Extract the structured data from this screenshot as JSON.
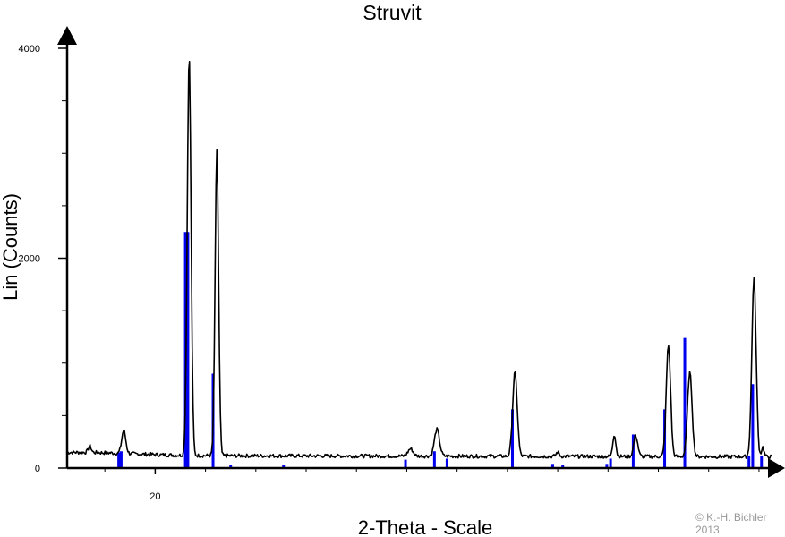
{
  "chart_data": {
    "type": "line",
    "title": "Struvit",
    "xlabel": "2-Theta - Scale",
    "ylabel": "Lin (Counts)",
    "xlim": [
      16.5,
      44.5
    ],
    "ylim": [
      0,
      4000
    ],
    "x_ticks": [
      {
        "value": 20,
        "label": "20"
      }
    ],
    "y_ticks": [
      {
        "value": 0,
        "label": "0"
      },
      {
        "value": 2000,
        "label": "2000"
      },
      {
        "value": 4000,
        "label": "4000"
      }
    ],
    "baseline": 120,
    "peaks": [
      {
        "x": 17.4,
        "y": 60,
        "w": 0.06
      },
      {
        "x": 18.75,
        "y": 220,
        "w": 0.08
      },
      {
        "x": 21.35,
        "y": 3820,
        "w": 0.075
      },
      {
        "x": 22.45,
        "y": 2900,
        "w": 0.07
      },
      {
        "x": 30.15,
        "y": 70,
        "w": 0.1
      },
      {
        "x": 31.2,
        "y": 255,
        "w": 0.1
      },
      {
        "x": 34.3,
        "y": 800,
        "w": 0.09
      },
      {
        "x": 36.0,
        "y": 40,
        "w": 0.06
      },
      {
        "x": 38.25,
        "y": 210,
        "w": 0.06
      },
      {
        "x": 39.1,
        "y": 200,
        "w": 0.08
      },
      {
        "x": 40.4,
        "y": 1060,
        "w": 0.085
      },
      {
        "x": 41.25,
        "y": 800,
        "w": 0.09
      },
      {
        "x": 43.8,
        "y": 1700,
        "w": 0.085
      },
      {
        "x": 44.15,
        "y": 90,
        "w": 0.05
      }
    ],
    "series": [
      {
        "name": "",
        "style": "line",
        "color": "#000000"
      },
      {
        "name": "",
        "style": "stick",
        "color": "#0000ee",
        "x": [
          18.55,
          18.65,
          21.2,
          21.3,
          22.3,
          23.0,
          25.1,
          29.95,
          31.1,
          31.6,
          34.2,
          35.8,
          36.2,
          37.95,
          38.1,
          39.0,
          40.25,
          41.05,
          43.6,
          43.75,
          44.1
        ],
        "y": [
          150,
          160,
          2250,
          2250,
          900,
          30,
          30,
          80,
          160,
          90,
          560,
          40,
          30,
          40,
          90,
          320,
          560,
          1240,
          120,
          800,
          120
        ]
      }
    ]
  },
  "colors": {
    "line": "#000000",
    "sticks": "#0000ee",
    "axes": "#000000",
    "copyright": "#999999"
  },
  "copyright": {
    "line1": "© K.-H. Bichler",
    "line2": "2013"
  }
}
